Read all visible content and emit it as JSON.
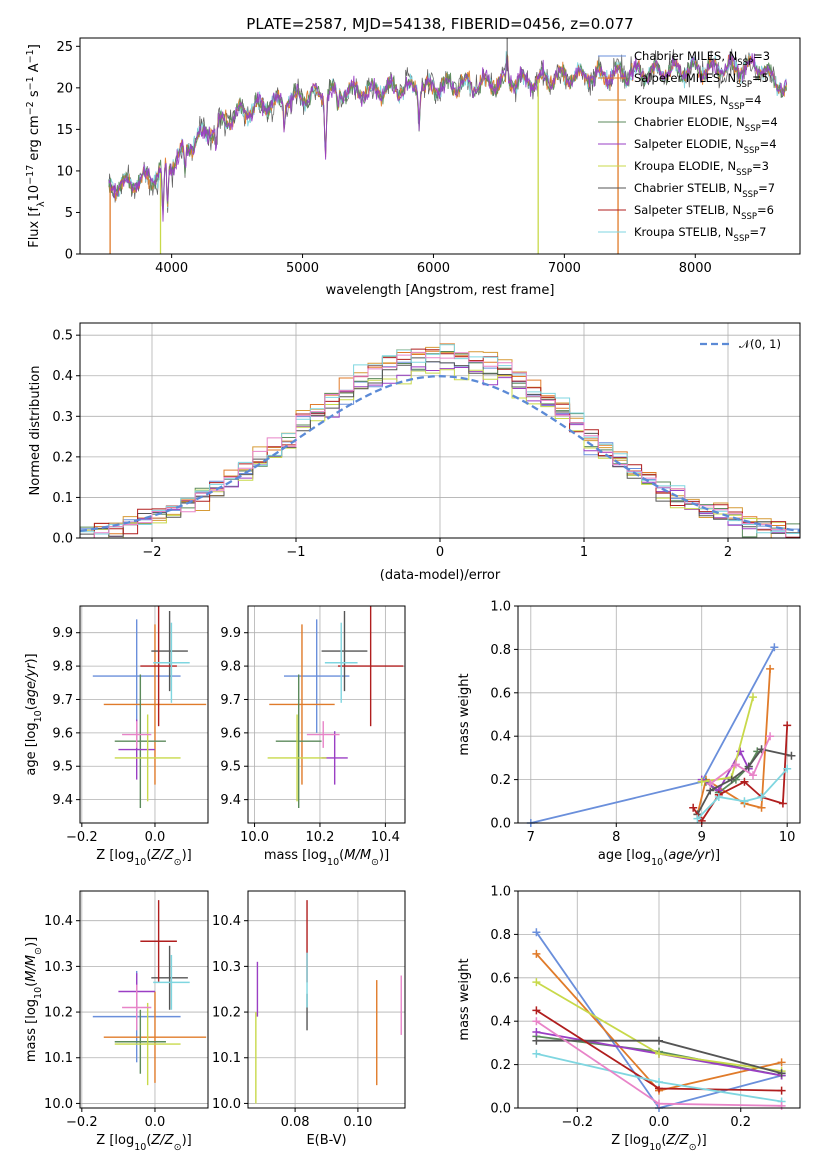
{
  "title": "PLATE=2587, MJD=54138, FIBERID=0456, z=0.077",
  "colors": {
    "Chabrier MILES": "#6a8fdb",
    "Salpeter MILES": "#e07b2a",
    "Kroupa MILES": "#d69a36",
    "Chabrier ELODIE": "#5b8a5b",
    "Salpeter ELODIE": "#9a3fc4",
    "Kroupa ELODIE": "#c8d94a",
    "Chabrier STELIB": "#555555",
    "Salpeter STELIB": "#b01e1e",
    "Kroupa STELIB": "#7fd6e0",
    "pink": "#e884c8",
    "gauss": "#5b8ad6"
  },
  "legend": {
    "labels": [
      "Chabrier MILES, N",
      "Salpeter MILES, N",
      "Kroupa MILES, N",
      "Chabrier ELODIE, N",
      "Salpeter ELODIE, N",
      "Kroupa ELODIE, N",
      "Chabrier STELIB, N",
      "Salpeter STELIB, N",
      "Kroupa STELIB, N"
    ],
    "sub": "SSP",
    "counts": [
      "=3",
      "=5",
      "=4",
      "=4",
      "=4",
      "=3",
      "=7",
      "=6",
      "=7"
    ],
    "gauss_label": "𝒩(0, 1)"
  },
  "chart_data": [
    {
      "type": "line",
      "panel": "spectrum",
      "xlabel": "wavelength [Angstrom, rest frame]",
      "ylabel": "Flux [f",
      "ylabel_parts": [
        "Flux [f",
        "λ",
        "10",
        "−17",
        " erg cm",
        "−2",
        " s",
        "−1",
        " A",
        "−1",
        "]"
      ],
      "xlim": [
        3300,
        8800
      ],
      "ylim": [
        0,
        26
      ],
      "xticks": [
        "4000",
        "5000",
        "6000",
        "7000",
        "8000"
      ],
      "yticks": [
        "0",
        "5",
        "10",
        "15",
        "20",
        "25"
      ],
      "continuum": {
        "x": [
          3520,
          3700,
          3900,
          4000,
          4200,
          4500,
          5000,
          5500,
          6000,
          6500,
          7000,
          7500,
          8000,
          8500,
          8700
        ],
        "y": [
          8,
          8.5,
          9.5,
          11,
          14,
          17,
          19,
          19.7,
          20.2,
          20.6,
          21.3,
          21.8,
          22.2,
          22.6,
          19.5
        ]
      }
    },
    {
      "type": "area",
      "panel": "residual-histogram",
      "xlabel": "(data-model)/error",
      "ylabel": "Normed distribution",
      "xlim": [
        -2.5,
        2.5
      ],
      "ylim": [
        0,
        0.53
      ],
      "xticks": [
        "−2",
        "−1",
        "0",
        "1",
        "2"
      ],
      "yticks": [
        "0.0",
        "0.1",
        "0.2",
        "0.3",
        "0.4",
        "0.5"
      ],
      "bin_width": 0.1
    },
    {
      "type": "scatter",
      "panel": "age-vs-Z",
      "xlabel": "Z [log",
      "ylabel": "age  [log",
      "xlim": [
        -0.205,
        0.145
      ],
      "ylim": [
        9.33,
        9.98
      ],
      "xticks": [
        "−0.2",
        "0.0"
      ],
      "yticks": [
        "9.4",
        "9.5",
        "9.6",
        "9.7",
        "9.8",
        "9.9"
      ],
      "points": [
        {
          "series": "Chabrier MILES",
          "x": -0.05,
          "xerr": 0.12,
          "y": 9.77,
          "yerr": 0.17
        },
        {
          "series": "Salpeter MILES",
          "x": 0.0,
          "xerr": 0.14,
          "y": 9.685,
          "yerr": 0.24
        },
        {
          "series": "Chabrier ELODIE",
          "x": -0.04,
          "xerr": 0.07,
          "y": 9.575,
          "yerr": 0.2
        },
        {
          "series": "Salpeter ELODIE",
          "x": -0.05,
          "xerr": 0.05,
          "y": 9.55,
          "yerr": 0.09
        },
        {
          "series": "Kroupa ELODIE",
          "x": -0.02,
          "xerr": 0.09,
          "y": 9.525,
          "yerr": 0.13
        },
        {
          "series": "Chabrier STELIB",
          "x": 0.04,
          "xerr": 0.05,
          "y": 9.845,
          "yerr": 0.12
        },
        {
          "series": "Salpeter STELIB",
          "x": 0.01,
          "xerr": 0.05,
          "y": 9.8,
          "yerr": 0.18
        },
        {
          "series": "Kroupa STELIB",
          "x": 0.045,
          "xerr": 0.05,
          "y": 9.81,
          "yerr": 0.12
        },
        {
          "series": "pink",
          "x": -0.05,
          "xerr": 0.04,
          "y": 9.595,
          "yerr": 0.04
        }
      ]
    },
    {
      "type": "scatter",
      "panel": "age-vs-mass",
      "xlabel": "mass [log",
      "xlim": [
        9.98,
        10.46
      ],
      "ylim": [
        9.33,
        9.98
      ],
      "xticks": [
        "10.0",
        "10.2",
        "10.4"
      ],
      "yticks": [
        "9.4",
        "9.5",
        "9.6",
        "9.7",
        "9.8",
        "9.9"
      ],
      "points": [
        {
          "series": "Chabrier MILES",
          "x": 10.19,
          "xerr": 0.1,
          "y": 9.77,
          "yerr": 0.17
        },
        {
          "series": "Salpeter MILES",
          "x": 10.145,
          "xerr": 0.1,
          "y": 9.685,
          "yerr": 0.24
        },
        {
          "series": "Chabrier ELODIE",
          "x": 10.135,
          "xerr": 0.07,
          "y": 9.575,
          "yerr": 0.2
        },
        {
          "series": "Salpeter ELODIE",
          "x": 10.245,
          "xerr": 0.04,
          "y": 9.525,
          "yerr": 0.08
        },
        {
          "series": "Kroupa ELODIE",
          "x": 10.13,
          "xerr": 0.09,
          "y": 9.525,
          "yerr": 0.13
        },
        {
          "series": "Chabrier STELIB",
          "x": 10.275,
          "xerr": 0.07,
          "y": 9.845,
          "yerr": 0.12
        },
        {
          "series": "Salpeter STELIB",
          "x": 10.355,
          "xerr": 0.1,
          "y": 9.8,
          "yerr": 0.18
        },
        {
          "series": "Kroupa STELIB",
          "x": 10.265,
          "xerr": 0.05,
          "y": 9.81,
          "yerr": 0.12
        },
        {
          "series": "pink",
          "x": 10.21,
          "xerr": 0.05,
          "y": 9.595,
          "yerr": 0.04
        }
      ]
    },
    {
      "type": "line",
      "panel": "mass-weight-vs-age",
      "xlabel": "age  [log",
      "ylabel": "mass weight",
      "xlim": [
        6.85,
        10.15
      ],
      "ylim": [
        0,
        1
      ],
      "xticks": [
        "7",
        "8",
        "9",
        "10"
      ],
      "yticks": [
        "0.0",
        "0.2",
        "0.4",
        "0.6",
        "0.8",
        "1.0"
      ],
      "series": [
        {
          "name": "Chabrier MILES",
          "x": [
            7.0,
            9.0,
            9.85
          ],
          "y": [
            0.0,
            0.19,
            0.81
          ]
        },
        {
          "name": "Salpeter MILES",
          "x": [
            8.95,
            9.05,
            9.5,
            9.7,
            9.8
          ],
          "y": [
            0.04,
            0.2,
            0.09,
            0.07,
            0.71
          ]
        },
        {
          "name": "Chabrier ELODIE",
          "x": [
            9.05,
            9.2,
            9.4,
            9.55,
            9.65
          ],
          "y": [
            0.19,
            0.14,
            0.2,
            0.26,
            0.33
          ]
        },
        {
          "name": "Salpeter ELODIE",
          "x": [
            9.0,
            9.2,
            9.45,
            9.55
          ],
          "y": [
            0.2,
            0.15,
            0.33,
            0.25
          ]
        },
        {
          "name": "Kroupa ELODIE",
          "x": [
            9.0,
            9.35,
            9.6
          ],
          "y": [
            0.19,
            0.21,
            0.58
          ]
        },
        {
          "name": "Chabrier STELIB",
          "x": [
            8.95,
            9.1,
            9.35,
            9.55,
            9.7,
            10.05
          ],
          "y": [
            0.04,
            0.15,
            0.2,
            0.26,
            0.34,
            0.31
          ]
        },
        {
          "name": "Salpeter STELIB",
          "x": [
            8.9,
            9.0,
            9.2,
            9.5,
            9.7,
            9.95,
            10.0
          ],
          "y": [
            0.07,
            0.01,
            0.13,
            0.19,
            0.12,
            0.09,
            0.45
          ]
        },
        {
          "name": "Kroupa STELIB",
          "x": [
            8.95,
            9.2,
            9.5,
            9.7,
            10.0
          ],
          "y": [
            0.02,
            0.12,
            0.1,
            0.12,
            0.25
          ]
        },
        {
          "name": "pink",
          "x": [
            9.1,
            9.4,
            9.6,
            9.8
          ],
          "y": [
            0.18,
            0.27,
            0.22,
            0.4
          ]
        }
      ]
    },
    {
      "type": "scatter",
      "panel": "mass-vs-Z",
      "xlabel": "Z [log",
      "ylabel": "mass [log",
      "xlim": [
        -0.205,
        0.145
      ],
      "ylim": [
        9.99,
        10.465
      ],
      "xticks": [
        "−0.2",
        "0.0"
      ],
      "yticks": [
        "10.0",
        "10.1",
        "10.2",
        "10.3",
        "10.4"
      ],
      "points": [
        {
          "series": "Chabrier MILES",
          "x": -0.05,
          "xerr": 0.12,
          "y": 10.19,
          "yerr": 0.1
        },
        {
          "series": "Salpeter MILES",
          "x": 0.0,
          "xerr": 0.14,
          "y": 10.145,
          "yerr": 0.1
        },
        {
          "series": "Chabrier ELODIE",
          "x": -0.04,
          "xerr": 0.07,
          "y": 10.135,
          "yerr": 0.07
        },
        {
          "series": "Salpeter ELODIE",
          "x": -0.05,
          "xerr": 0.05,
          "y": 10.245,
          "yerr": 0.04
        },
        {
          "series": "Kroupa ELODIE",
          "x": -0.02,
          "xerr": 0.09,
          "y": 10.13,
          "yerr": 0.09
        },
        {
          "series": "Chabrier STELIB",
          "x": 0.04,
          "xerr": 0.05,
          "y": 10.275,
          "yerr": 0.07
        },
        {
          "series": "Salpeter STELIB",
          "x": 0.01,
          "xerr": 0.05,
          "y": 10.355,
          "yerr": 0.09
        },
        {
          "series": "Kroupa STELIB",
          "x": 0.045,
          "xerr": 0.05,
          "y": 10.265,
          "yerr": 0.06
        },
        {
          "series": "pink",
          "x": -0.05,
          "xerr": 0.04,
          "y": 10.21,
          "yerr": 0.05
        }
      ]
    },
    {
      "type": "scatter",
      "panel": "mass-vs-EBV",
      "xlabel": "E(B-V)",
      "xlim": [
        0.065,
        0.115
      ],
      "ylim": [
        9.99,
        10.465
      ],
      "xticks": [
        "0.08",
        "0.10"
      ],
      "yticks": [
        "10.0",
        "10.1",
        "10.2",
        "10.3",
        "10.4"
      ],
      "points": [
        {
          "series": "Kroupa ELODIE",
          "x": 0.0675,
          "y": 10.1,
          "yerr": 0.1
        },
        {
          "series": "Salpeter ELODIE",
          "x": 0.068,
          "y": 10.25,
          "yerr": 0.06
        },
        {
          "series": "Salpeter STELIB",
          "x": 0.0838,
          "y": 10.355,
          "yerr": 0.09
        },
        {
          "series": "Chabrier STELIB",
          "x": 0.0838,
          "y": 10.2,
          "yerr": 0.04
        },
        {
          "series": "Kroupa STELIB",
          "x": 0.0838,
          "y": 10.27,
          "yerr": 0.06
        },
        {
          "series": "Salpeter MILES",
          "x": 0.106,
          "y": 10.155,
          "yerr": 0.115
        },
        {
          "series": "pink",
          "x": 0.1138,
          "y": 10.215,
          "yerr": 0.065
        }
      ]
    },
    {
      "type": "line",
      "panel": "mass-weight-vs-Z",
      "xlabel": "Z [log",
      "ylabel": "mass weight",
      "xlim": [
        -0.345,
        0.345
      ],
      "ylim": [
        0,
        1
      ],
      "xticks": [
        "−0.2",
        "0.0",
        "0.2"
      ],
      "yticks": [
        "0.0",
        "0.2",
        "0.4",
        "0.6",
        "0.8",
        "1.0"
      ],
      "series": [
        {
          "name": "Chabrier MILES",
          "x": [
            -0.3,
            0.0,
            0.3
          ],
          "y": [
            0.81,
            0.0,
            0.15
          ]
        },
        {
          "name": "Salpeter MILES",
          "x": [
            -0.3,
            0.0,
            0.3
          ],
          "y": [
            0.71,
            0.08,
            0.21
          ]
        },
        {
          "name": "Chabrier ELODIE",
          "x": [
            -0.3,
            0.0,
            0.3
          ],
          "y": [
            0.33,
            0.26,
            0.15
          ]
        },
        {
          "name": "Salpeter ELODIE",
          "x": [
            -0.3,
            0.0,
            0.3
          ],
          "y": [
            0.35,
            0.25,
            0.15
          ]
        },
        {
          "name": "Kroupa ELODIE",
          "x": [
            -0.3,
            0.0,
            0.3
          ],
          "y": [
            0.58,
            0.25,
            0.17
          ]
        },
        {
          "name": "Chabrier STELIB",
          "x": [
            -0.3,
            0.0,
            0.3
          ],
          "y": [
            0.31,
            0.31,
            0.16
          ]
        },
        {
          "name": "Salpeter STELIB",
          "x": [
            -0.3,
            0.0,
            0.3
          ],
          "y": [
            0.45,
            0.09,
            0.08
          ]
        },
        {
          "name": "Kroupa STELIB",
          "x": [
            -0.3,
            0.0,
            0.3
          ],
          "y": [
            0.25,
            0.12,
            0.03
          ]
        },
        {
          "name": "pink",
          "x": [
            -0.3,
            0.0,
            0.3
          ],
          "y": [
            0.4,
            0.02,
            0.01
          ]
        }
      ]
    }
  ]
}
